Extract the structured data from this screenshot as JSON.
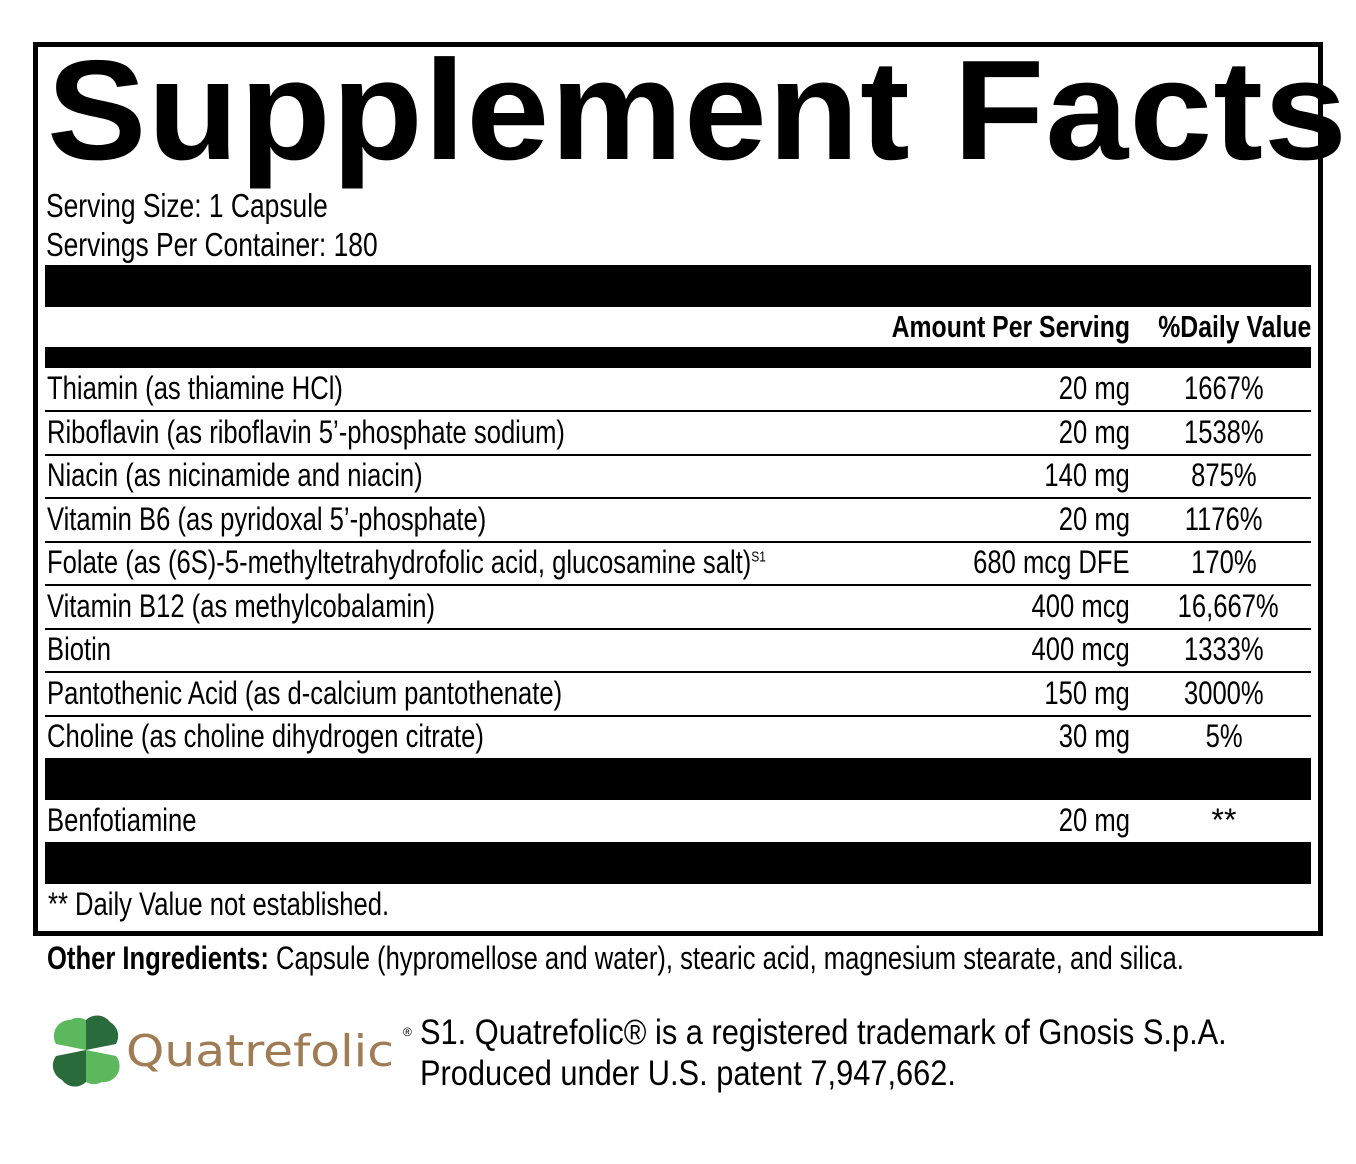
{
  "title": "Supplement Facts",
  "serving_size": "Serving Size: 1 Capsule",
  "servings_per_container": "Servings Per Container: 180",
  "header": {
    "amount": "Amount Per Serving",
    "dv": "%Daily Value"
  },
  "rows": [
    {
      "name": "Thiamin (as thiamine HCl)",
      "amount": "20 mg",
      "dv": "1667%"
    },
    {
      "name": "Riboflavin (as riboflavin 5’-phosphate sodium)",
      "amount": "20 mg",
      "dv": "1538%"
    },
    {
      "name": "Niacin (as nicinamide and niacin)",
      "amount": "140 mg",
      "dv": "875%"
    },
    {
      "name": "Vitamin B6 (as pyridoxal 5’-phosphate)",
      "amount": "20 mg",
      "dv": "1176%"
    },
    {
      "name": "Folate (as (6S)-5-methyltetrahydrofolic acid, glucosamine salt)",
      "sup": "S1",
      "amount": "680 mcg DFE",
      "dv": "170%"
    },
    {
      "name": "Vitamin B12 (as methylcobalamin)",
      "amount": "400 mcg",
      "dv": "16,667%"
    },
    {
      "name": "Biotin",
      "amount": "400 mcg",
      "dv": "1333%"
    },
    {
      "name": "Pantothenic Acid (as d-calcium pantothenate)",
      "amount": "150 mg",
      "dv": "3000%"
    },
    {
      "name": "Choline (as choline dihydrogen citrate)",
      "amount": "30 mg",
      "dv": "5%"
    }
  ],
  "other_row": {
    "name": "Benfotiamine",
    "amount": "20 mg",
    "dv": "**"
  },
  "footnote": "** Daily Value not established.",
  "other_ingredients": {
    "label": "Other Ingredients:",
    "text": " Capsule (hypromellose and water), stearic acid, magnesium stearate, and silica."
  },
  "logo": {
    "text": "Quatrefolic",
    "mark": "®",
    "colors": {
      "text": "#a07c55",
      "leaf_light": "#5cb85c",
      "leaf_dark": "#2a6b3c"
    }
  },
  "note": [
    "S1. Quatrefolic® is a registered trademark of Gnosis S.p.A.",
    "Produced under U.S. patent 7,947,662."
  ]
}
